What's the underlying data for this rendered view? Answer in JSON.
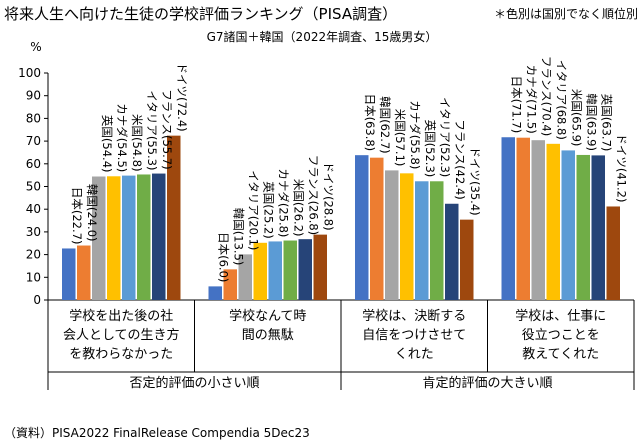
{
  "title": "将来人生へ向けた生徒の学校評価ランキング（PISA調査）",
  "note": "＊色別は国別でなく順位別",
  "subtitle": "G7諸国＋韓国（2022年調査、15歳男女）",
  "source": "（資料）PISA2022 FinalRelease Compendia 5Dec23",
  "rank_colors": [
    "#4472C4",
    "#ED7D31",
    "#A5A5A5",
    "#FFC000",
    "#5B9BD5",
    "#70AD47",
    "#264478",
    "#9E480E"
  ],
  "chart_data": {
    "type": "bar",
    "ylabel": "%",
    "ylim": [
      0,
      100
    ],
    "yticks": [
      "0",
      "10",
      "20",
      "30",
      "40",
      "50",
      "60",
      "70",
      "80",
      "90",
      "100"
    ],
    "group_labels": [
      {
        "text": "否定的評価の小さい順",
        "covers": [
          0,
          1
        ]
      },
      {
        "text": "肯定的評価の大きい順",
        "covers": [
          2,
          3
        ]
      }
    ],
    "categories": [
      {
        "label": [
          "学校を出た後の社",
          "会人としての生き方",
          "を教わらなかった"
        ],
        "bars": [
          {
            "label": "日本(22.7)",
            "value": 22.7
          },
          {
            "label": "韓国(24.0)",
            "value": 24.0
          },
          {
            "label": "英国(54.4)",
            "value": 54.4
          },
          {
            "label": "カナダ(54.5)",
            "value": 54.5
          },
          {
            "label": "米国(54.8)",
            "value": 54.8
          },
          {
            "label": "イタリア(55.3)",
            "value": 55.3
          },
          {
            "label": "フランス(55.7)",
            "value": 55.7
          },
          {
            "label": "ドイツ(72.4)",
            "value": 72.4
          }
        ]
      },
      {
        "label": [
          "学校なんて時",
          "間の無駄"
        ],
        "bars": [
          {
            "label": "日本(6.0)",
            "value": 6.0
          },
          {
            "label": "韓国(13.5)",
            "value": 13.5
          },
          {
            "label": "イタリア(20.1)",
            "value": 20.1
          },
          {
            "label": "英国(25.2)",
            "value": 25.2
          },
          {
            "label": "カナダ(25.8)",
            "value": 25.8
          },
          {
            "label": "米国(26.2)",
            "value": 26.2
          },
          {
            "label": "フランス(26.8)",
            "value": 26.8
          },
          {
            "label": "ドイツ(28.8)",
            "value": 28.8
          }
        ]
      },
      {
        "label": [
          "学校は、決断する",
          "自信をつけさせて",
          "くれた"
        ],
        "bars": [
          {
            "label": "日本(63.8)",
            "value": 63.8
          },
          {
            "label": "韓国(62.7)",
            "value": 62.7
          },
          {
            "label": "米国(57.1)",
            "value": 57.1
          },
          {
            "label": "カナダ(55.8)",
            "value": 55.8
          },
          {
            "label": "英国(52.3)",
            "value": 52.3
          },
          {
            "label": "イタリア(52.3)",
            "value": 52.3
          },
          {
            "label": "フランス(42.4)",
            "value": 42.4
          },
          {
            "label": "ドイツ(35.4)",
            "value": 35.4
          }
        ]
      },
      {
        "label": [
          "学校は、仕事に",
          "役立つことを",
          "教えてくれた"
        ],
        "bars": [
          {
            "label": "日本(71.7)",
            "value": 71.7
          },
          {
            "label": "カナダ(71.5)",
            "value": 71.5
          },
          {
            "label": "フランス(70.4)",
            "value": 70.4
          },
          {
            "label": "イタリア(68.8)",
            "value": 68.8
          },
          {
            "label": "米国(65.9)",
            "value": 65.9
          },
          {
            "label": "韓国(63.9)",
            "value": 63.9
          },
          {
            "label": "英国(63.7)",
            "value": 63.7
          },
          {
            "label": "ドイツ(41.2)",
            "value": 41.2
          }
        ]
      }
    ],
    "grid": false,
    "legend": "none"
  }
}
